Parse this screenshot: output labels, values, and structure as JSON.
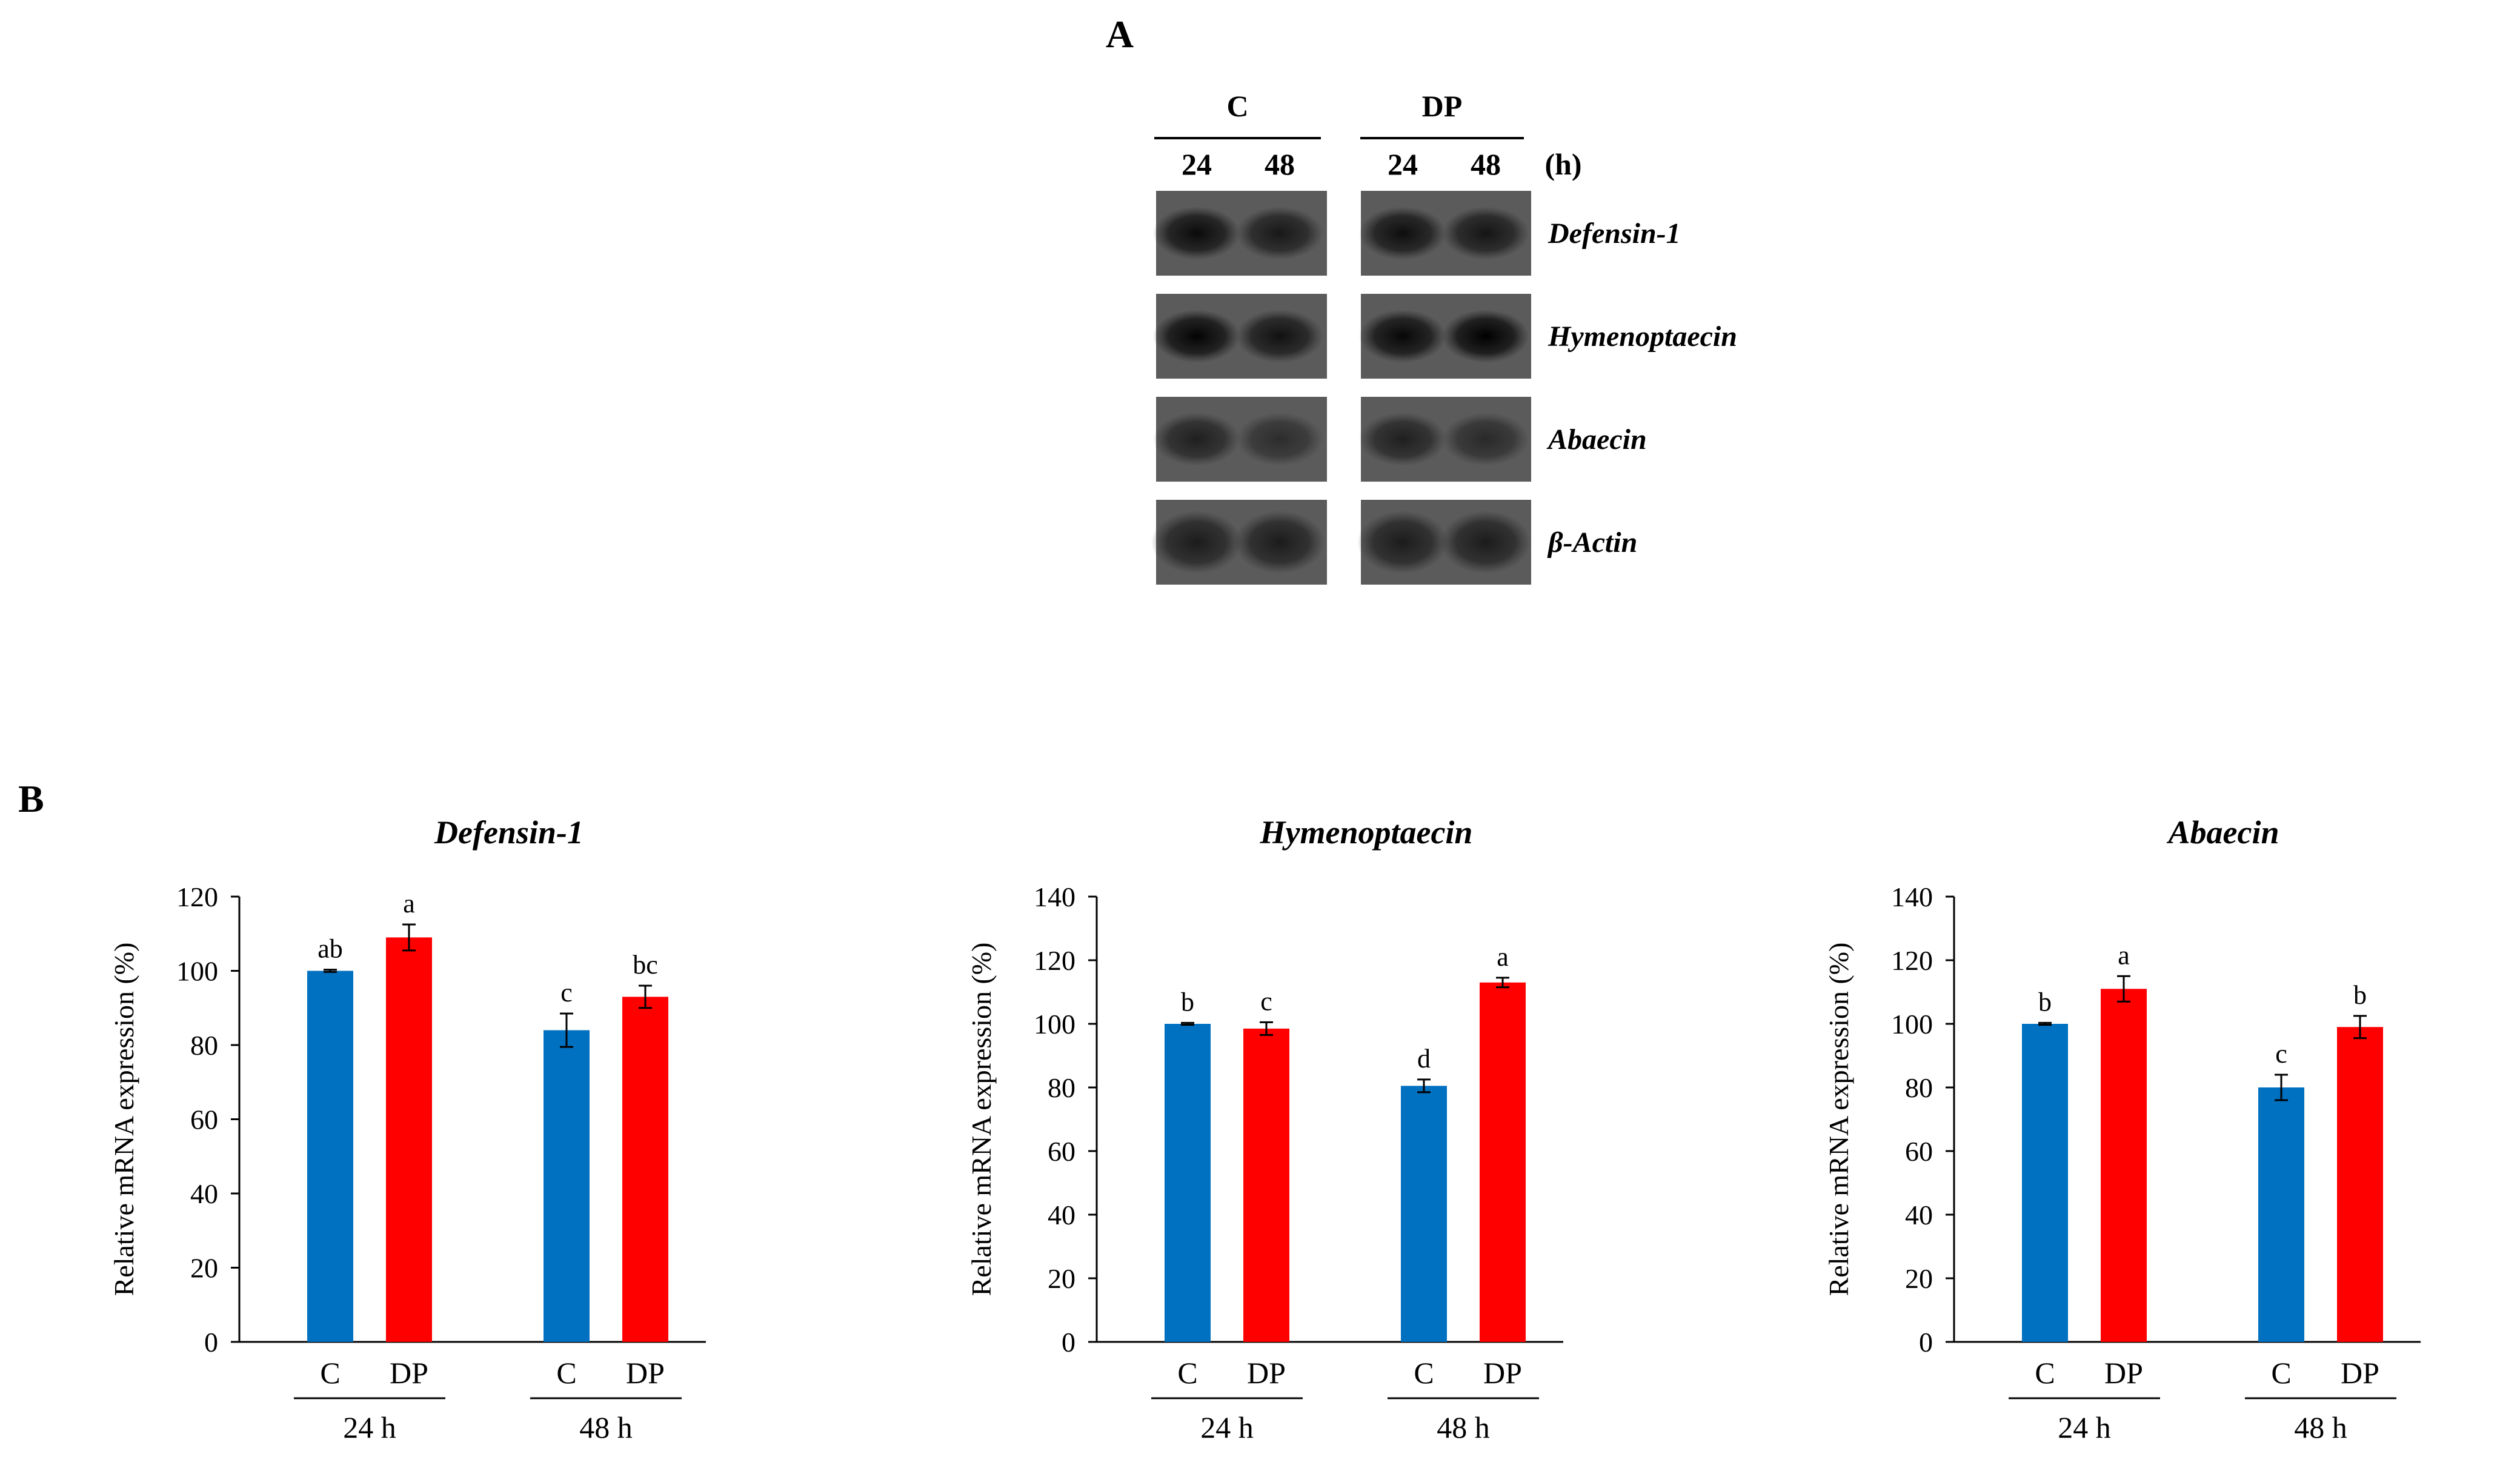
{
  "panel_a": {
    "label": "A",
    "groups": [
      "C",
      "DP"
    ],
    "times": [
      "24",
      "48",
      "24",
      "48"
    ],
    "time_unit": "(h)",
    "genes": [
      "Defensin-1",
      "Hymenoptaecin",
      "Abaecin",
      "β-Actin"
    ],
    "band_intensity": [
      [
        0.85,
        0.65,
        0.8,
        0.7
      ],
      [
        0.95,
        0.75,
        0.9,
        1.0
      ],
      [
        0.55,
        0.35,
        0.55,
        0.4
      ],
      [
        0.6,
        0.6,
        0.6,
        0.6
      ]
    ]
  },
  "panel_b": {
    "label": "B"
  },
  "colors": {
    "C": "#0070c0",
    "DP": "#ff0000"
  },
  "chart_data": [
    {
      "type": "bar",
      "title": "Defensin-1",
      "ylabel": "Relative mRNA expression (%)",
      "ylim": [
        0,
        120
      ],
      "yticks": [
        0,
        20,
        40,
        60,
        80,
        100,
        120
      ],
      "groups": [
        "24 h",
        "48 h"
      ],
      "categories": [
        "C",
        "DP",
        "C",
        "DP"
      ],
      "values": [
        100,
        109,
        84,
        93
      ],
      "errors": [
        0.3,
        3.5,
        4.5,
        3
      ],
      "letters": [
        "ab",
        "a",
        "c",
        "bc"
      ]
    },
    {
      "type": "bar",
      "title": "Hymenoptaecin",
      "ylabel": "Relative mRNA expression (%)",
      "ylim": [
        0,
        140
      ],
      "yticks": [
        0,
        20,
        40,
        60,
        80,
        100,
        120,
        140
      ],
      "groups": [
        "24 h",
        "48 h"
      ],
      "categories": [
        "C",
        "DP",
        "C",
        "DP"
      ],
      "values": [
        100,
        98.5,
        80.5,
        113
      ],
      "errors": [
        0.3,
        2,
        2,
        1.5
      ],
      "letters": [
        "b",
        "c",
        "d",
        "a"
      ]
    },
    {
      "type": "bar",
      "title": "Abaecin",
      "ylabel": "Relative mRNA expression (%)",
      "ylim": [
        0,
        140
      ],
      "yticks": [
        0,
        20,
        40,
        60,
        80,
        100,
        120,
        140
      ],
      "groups": [
        "24 h",
        "48 h"
      ],
      "categories": [
        "C",
        "DP",
        "C",
        "DP"
      ],
      "values": [
        100,
        111,
        80,
        99
      ],
      "errors": [
        0.3,
        4,
        4,
        3.5
      ],
      "letters": [
        "b",
        "a",
        "c",
        "b"
      ]
    }
  ]
}
